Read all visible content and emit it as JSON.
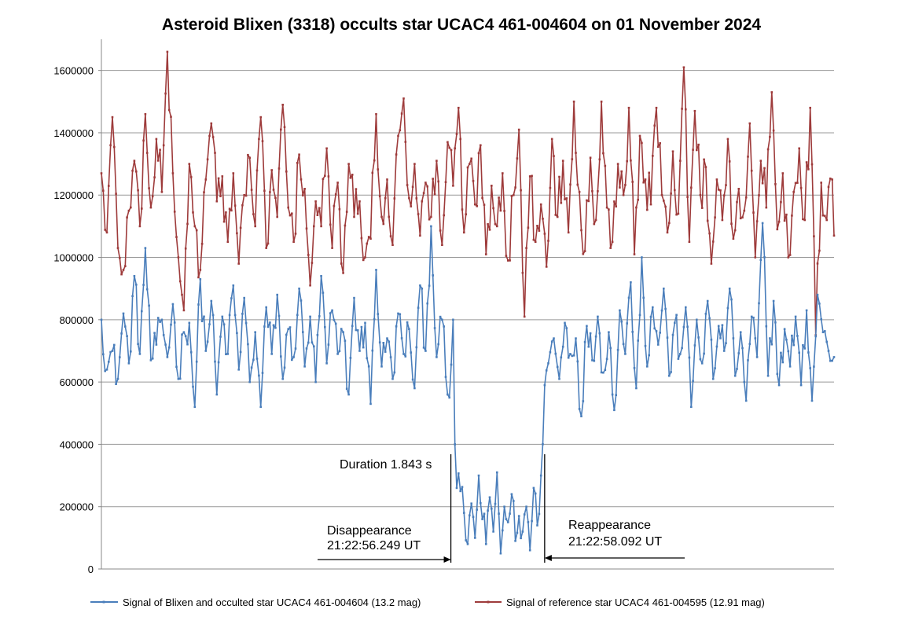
{
  "chart_data": {
    "type": "line",
    "title": "Asteroid Blixen (3318) occults star UCAC4 461-004604 on 01 November 2024",
    "xlabel": "",
    "ylabel": "",
    "ylim": [
      0,
      1700000
    ],
    "yticks": [
      0,
      200000,
      400000,
      600000,
      800000,
      1000000,
      1200000,
      1400000,
      1600000
    ],
    "ytick_labels": [
      "0",
      "200000",
      "400000",
      "600000",
      "800000",
      "1000000",
      "1200000",
      "1400000",
      "1600000"
    ],
    "grid": "horizontal",
    "legend_position": "bottom",
    "frame_count": 400,
    "event_frames": {
      "disappearance": 190,
      "reappearance": 242
    },
    "series": [
      {
        "name": "Signal of Blixen and occulted star UCAC4 461-004604 (13.2 mag)",
        "color": "#4a7ebb",
        "sampled_values": [
          [
            0,
            800000
          ],
          [
            3,
            640000
          ],
          [
            6,
            700000
          ],
          [
            9,
            610000
          ],
          [
            12,
            820000
          ],
          [
            15,
            660000
          ],
          [
            18,
            940000
          ],
          [
            21,
            690000
          ],
          [
            24,
            1030000
          ],
          [
            27,
            670000
          ],
          [
            30,
            720000
          ],
          [
            33,
            800000
          ],
          [
            36,
            680000
          ],
          [
            39,
            850000
          ],
          [
            42,
            610000
          ],
          [
            45,
            760000
          ],
          [
            48,
            790000
          ],
          [
            51,
            520000
          ],
          [
            54,
            930000
          ],
          [
            57,
            700000
          ],
          [
            60,
            860000
          ],
          [
            63,
            560000
          ],
          [
            66,
            810000
          ],
          [
            69,
            690000
          ],
          [
            72,
            910000
          ],
          [
            75,
            640000
          ],
          [
            78,
            870000
          ],
          [
            81,
            600000
          ],
          [
            84,
            760000
          ],
          [
            87,
            520000
          ],
          [
            90,
            840000
          ],
          [
            93,
            690000
          ],
          [
            96,
            880000
          ],
          [
            99,
            610000
          ],
          [
            102,
            770000
          ],
          [
            105,
            680000
          ],
          [
            108,
            900000
          ],
          [
            111,
            650000
          ],
          [
            114,
            810000
          ],
          [
            117,
            600000
          ],
          [
            120,
            940000
          ],
          [
            123,
            660000
          ],
          [
            126,
            830000
          ],
          [
            129,
            690000
          ],
          [
            132,
            760000
          ],
          [
            135,
            560000
          ],
          [
            138,
            870000
          ],
          [
            141,
            700000
          ],
          [
            144,
            790000
          ],
          [
            147,
            530000
          ],
          [
            150,
            960000
          ],
          [
            153,
            650000
          ],
          [
            156,
            740000
          ],
          [
            159,
            610000
          ],
          [
            162,
            820000
          ],
          [
            165,
            690000
          ],
          [
            168,
            770000
          ],
          [
            171,
            580000
          ],
          [
            174,
            910000
          ],
          [
            177,
            700000
          ],
          [
            180,
            1100000
          ],
          [
            183,
            680000
          ],
          [
            186,
            800000
          ],
          [
            189,
            560000
          ],
          [
            190,
            550000
          ],
          [
            192,
            800000
          ],
          [
            193,
            400000
          ],
          [
            194,
            260000
          ],
          [
            196,
            250000
          ],
          [
            198,
            180000
          ],
          [
            200,
            80000
          ],
          [
            202,
            210000
          ],
          [
            204,
            100000
          ],
          [
            206,
            300000
          ],
          [
            208,
            160000
          ],
          [
            210,
            80000
          ],
          [
            212,
            230000
          ],
          [
            214,
            120000
          ],
          [
            216,
            310000
          ],
          [
            218,
            50000
          ],
          [
            220,
            200000
          ],
          [
            222,
            150000
          ],
          [
            224,
            240000
          ],
          [
            226,
            90000
          ],
          [
            228,
            170000
          ],
          [
            230,
            120000
          ],
          [
            232,
            200000
          ],
          [
            234,
            60000
          ],
          [
            236,
            260000
          ],
          [
            238,
            140000
          ],
          [
            240,
            300000
          ],
          [
            242,
            590000
          ],
          [
            244,
            660000
          ],
          [
            247,
            740000
          ],
          [
            250,
            610000
          ],
          [
            253,
            790000
          ],
          [
            256,
            690000
          ],
          [
            259,
            740000
          ],
          [
            262,
            490000
          ],
          [
            265,
            780000
          ],
          [
            268,
            670000
          ],
          [
            271,
            810000
          ],
          [
            274,
            630000
          ],
          [
            277,
            760000
          ],
          [
            280,
            510000
          ],
          [
            283,
            830000
          ],
          [
            286,
            690000
          ],
          [
            289,
            920000
          ],
          [
            292,
            580000
          ],
          [
            295,
            1000000
          ],
          [
            298,
            650000
          ],
          [
            301,
            840000
          ],
          [
            304,
            720000
          ],
          [
            307,
            900000
          ],
          [
            310,
            620000
          ],
          [
            313,
            790000
          ],
          [
            316,
            690000
          ],
          [
            319,
            840000
          ],
          [
            322,
            520000
          ],
          [
            325,
            800000
          ],
          [
            328,
            660000
          ],
          [
            331,
            860000
          ],
          [
            334,
            610000
          ],
          [
            337,
            780000
          ],
          [
            340,
            700000
          ],
          [
            343,
            900000
          ],
          [
            346,
            620000
          ],
          [
            349,
            760000
          ],
          [
            352,
            540000
          ],
          [
            355,
            810000
          ],
          [
            358,
            680000
          ],
          [
            361,
            1110000
          ],
          [
            364,
            620000
          ],
          [
            367,
            860000
          ],
          [
            370,
            590000
          ],
          [
            373,
            770000
          ],
          [
            376,
            650000
          ],
          [
            379,
            810000
          ],
          [
            382,
            590000
          ],
          [
            385,
            830000
          ],
          [
            388,
            540000
          ],
          [
            391,
            880000
          ],
          [
            394,
            760000
          ],
          [
            397,
            700000
          ],
          [
            400,
            680000
          ]
        ]
      },
      {
        "name": "Signal of reference star UCAC4 461-004595 (12.91 mag)",
        "color": "#9e3b3b",
        "sampled_values": [
          [
            0,
            1270000
          ],
          [
            3,
            1080000
          ],
          [
            6,
            1450000
          ],
          [
            9,
            1030000
          ],
          [
            12,
            960000
          ],
          [
            15,
            1150000
          ],
          [
            18,
            1310000
          ],
          [
            21,
            1100000
          ],
          [
            24,
            1460000
          ],
          [
            27,
            1160000
          ],
          [
            30,
            1380000
          ],
          [
            33,
            1210000
          ],
          [
            36,
            1660000
          ],
          [
            39,
            1270000
          ],
          [
            42,
            1000000
          ],
          [
            45,
            830000
          ],
          [
            48,
            1300000
          ],
          [
            51,
            1100000
          ],
          [
            54,
            960000
          ],
          [
            57,
            1250000
          ],
          [
            60,
            1430000
          ],
          [
            63,
            1180000
          ],
          [
            66,
            1260000
          ],
          [
            69,
            1050000
          ],
          [
            72,
            1270000
          ],
          [
            75,
            980000
          ],
          [
            78,
            1200000
          ],
          [
            81,
            1320000
          ],
          [
            84,
            1100000
          ],
          [
            87,
            1450000
          ],
          [
            90,
            1030000
          ],
          [
            93,
            1280000
          ],
          [
            96,
            1130000
          ],
          [
            99,
            1490000
          ],
          [
            102,
            1160000
          ],
          [
            105,
            1050000
          ],
          [
            108,
            1330000
          ],
          [
            111,
            1220000
          ],
          [
            114,
            910000
          ],
          [
            117,
            1180000
          ],
          [
            120,
            1100000
          ],
          [
            123,
            1350000
          ],
          [
            126,
            1030000
          ],
          [
            129,
            1240000
          ],
          [
            132,
            950000
          ],
          [
            135,
            1300000
          ],
          [
            138,
            1130000
          ],
          [
            141,
            1180000
          ],
          [
            144,
            1000000
          ],
          [
            147,
            1060000
          ],
          [
            150,
            1460000
          ],
          [
            153,
            1130000
          ],
          [
            156,
            1250000
          ],
          [
            159,
            1040000
          ],
          [
            162,
            1390000
          ],
          [
            165,
            1510000
          ],
          [
            168,
            1190000
          ],
          [
            171,
            1300000
          ],
          [
            174,
            1070000
          ],
          [
            177,
            1240000
          ],
          [
            180,
            1130000
          ],
          [
            183,
            1310000
          ],
          [
            186,
            1040000
          ],
          [
            189,
            1370000
          ],
          [
            192,
            1230000
          ],
          [
            195,
            1480000
          ],
          [
            198,
            1080000
          ],
          [
            201,
            1300000
          ],
          [
            204,
            1170000
          ],
          [
            207,
            1360000
          ],
          [
            210,
            1010000
          ],
          [
            213,
            1230000
          ],
          [
            216,
            1100000
          ],
          [
            219,
            1270000
          ],
          [
            222,
            990000
          ],
          [
            225,
            1200000
          ],
          [
            228,
            1410000
          ],
          [
            231,
            810000
          ],
          [
            234,
            1260000
          ],
          [
            237,
            1050000
          ],
          [
            240,
            1170000
          ],
          [
            243,
            970000
          ],
          [
            246,
            1380000
          ],
          [
            249,
            1130000
          ],
          [
            252,
            1310000
          ],
          [
            255,
            1080000
          ],
          [
            258,
            1500000
          ],
          [
            261,
            1210000
          ],
          [
            264,
            1020000
          ],
          [
            267,
            1320000
          ],
          [
            270,
            1120000
          ],
          [
            273,
            1500000
          ],
          [
            276,
            1160000
          ],
          [
            279,
            1050000
          ],
          [
            282,
            1300000
          ],
          [
            285,
            1200000
          ],
          [
            288,
            1480000
          ],
          [
            291,
            1010000
          ],
          [
            294,
            1390000
          ],
          [
            297,
            1250000
          ],
          [
            300,
            1170000
          ],
          [
            303,
            1480000
          ],
          [
            306,
            1200000
          ],
          [
            309,
            1080000
          ],
          [
            312,
            1340000
          ],
          [
            315,
            1140000
          ],
          [
            318,
            1610000
          ],
          [
            321,
            1050000
          ],
          [
            324,
            1470000
          ],
          [
            327,
            1200000
          ],
          [
            330,
            1290000
          ],
          [
            333,
            980000
          ],
          [
            336,
            1250000
          ],
          [
            339,
            1120000
          ],
          [
            342,
            1380000
          ],
          [
            345,
            1060000
          ],
          [
            348,
            1220000
          ],
          [
            351,
            1150000
          ],
          [
            354,
            1430000
          ],
          [
            357,
            1000000
          ],
          [
            360,
            1310000
          ],
          [
            363,
            1160000
          ],
          [
            366,
            1530000
          ],
          [
            369,
            1090000
          ],
          [
            372,
            1270000
          ],
          [
            375,
            1000000
          ],
          [
            378,
            1210000
          ],
          [
            381,
            1350000
          ],
          [
            384,
            1120000
          ],
          [
            387,
            1480000
          ],
          [
            390,
            750000
          ],
          [
            393,
            1240000
          ],
          [
            396,
            1120000
          ],
          [
            399,
            1250000
          ],
          [
            400,
            1070000
          ]
        ]
      }
    ],
    "annotations": {
      "duration": "Duration 1.843 s",
      "disappearance_label": "Disappearance",
      "disappearance_time": "21:22:56.249 UT",
      "reappearance_label": "Reappearance",
      "reappearance_time": "21:22:58.092 UT"
    }
  }
}
